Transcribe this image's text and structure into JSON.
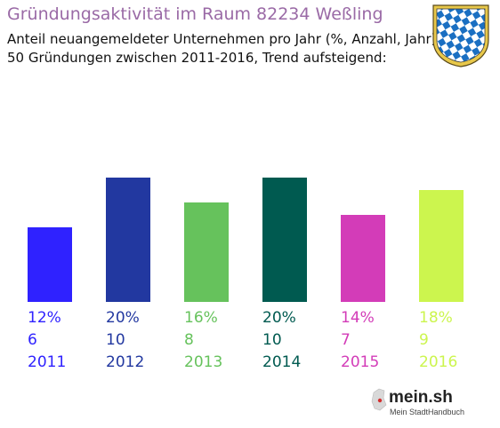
{
  "header": {
    "title": "Gründungsaktivität im Raum 82234 Weßling",
    "subtitle_line1": "Anteil neuangemeldeter Unternehmen pro Jahr (%, Anzahl, Jahr)",
    "subtitle_line2": "50 Gründungen zwischen 2011-2016, Trend aufsteigend:"
  },
  "crest": {
    "icon": "bavarian-coat-of-arms-icon",
    "colors": [
      "#1a6fc2",
      "#ffffff",
      "#e8c84a"
    ]
  },
  "logo": {
    "name": "mein.sh",
    "tagline": "Mein StadtHandbuch"
  },
  "chart_data": {
    "type": "bar",
    "categories": [
      "2011",
      "2012",
      "2013",
      "2014",
      "2015",
      "2016"
    ],
    "values": [
      12,
      20,
      16,
      20,
      14,
      18
    ],
    "counts": [
      6,
      10,
      8,
      10,
      7,
      9
    ],
    "value_labels": [
      "12%",
      "20%",
      "16%",
      "20%",
      "14%",
      "18%"
    ],
    "count_labels": [
      "6",
      "10",
      "8",
      "10",
      "7",
      "9"
    ],
    "colors": [
      "#2f22ff",
      "#2238a0",
      "#66c25c",
      "#005a50",
      "#d33cb8",
      "#ccf54e"
    ],
    "ylim": [
      0,
      20
    ],
    "grid": false,
    "legend": "none"
  }
}
